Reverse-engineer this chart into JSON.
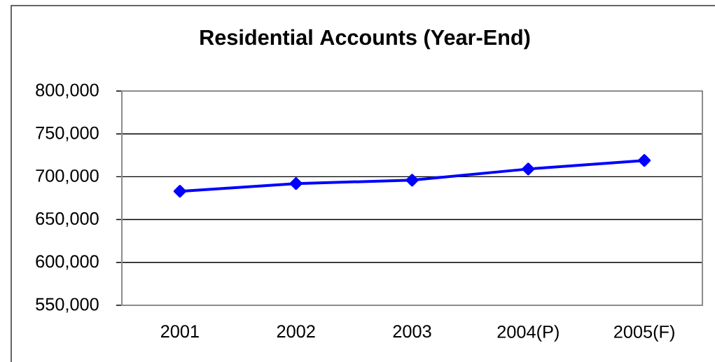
{
  "chart_data": {
    "type": "line",
    "title": "Residential Accounts (Year-End)",
    "categories": [
      "2001",
      "2002",
      "2003",
      "2004(P)",
      "2005(F)"
    ],
    "series": [
      {
        "color": "#0000ff",
        "values": [
          683000,
          692000,
          696000,
          709000,
          719000
        ]
      }
    ],
    "ylim": [
      550000,
      800000
    ],
    "yticks": [
      {
        "value": 550000,
        "label": "550,000"
      },
      {
        "value": 600000,
        "label": "600,000"
      },
      {
        "value": 650000,
        "label": "650,000"
      },
      {
        "value": 700000,
        "label": "700,000"
      },
      {
        "value": 750000,
        "label": "750,000"
      },
      {
        "value": 800000,
        "label": "800,000"
      }
    ],
    "grid": "y",
    "marker": "diamond",
    "line_style": "solid"
  }
}
